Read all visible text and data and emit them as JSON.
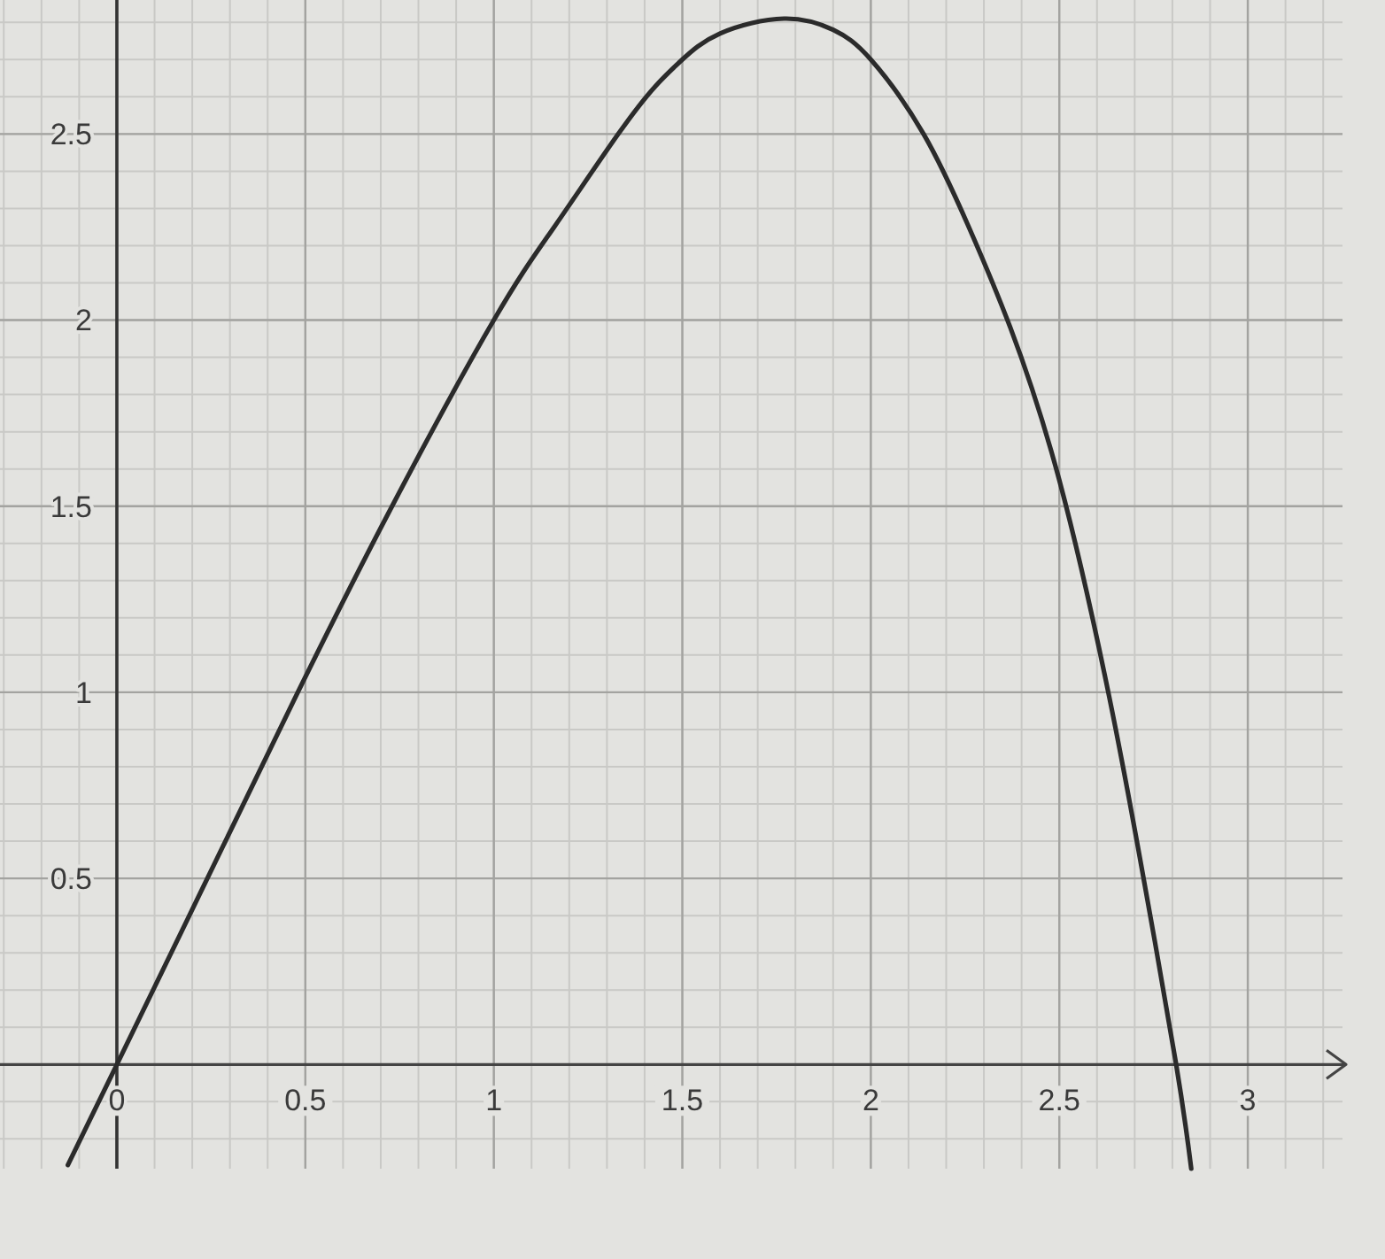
{
  "chart_data": {
    "type": "line",
    "x": [
      -0.13,
      0,
      0.24,
      0.48,
      0.73,
      1.0,
      1.16,
      1.33,
      1.43,
      1.5,
      1.6,
      1.77,
      1.9,
      2.0,
      2.14,
      2.26,
      2.37,
      2.5,
      2.63,
      2.72,
      2.81,
      2.85
    ],
    "series": [
      {
        "color": "#2b2b2b",
        "values": [
          -0.27,
          0,
          0.5,
          1.0,
          1.5,
          2.0,
          2.25,
          2.5,
          2.63,
          2.7,
          2.77,
          2.81,
          2.78,
          2.7,
          2.5,
          2.25,
          1.98,
          1.57,
          1.0,
          0.52,
          0,
          -0.28
        ]
      }
    ],
    "xlim": [
      -0.31,
      3.27
    ],
    "ylim": [
      -0.28,
      2.86
    ],
    "xticks": [
      0,
      0.5,
      1,
      1.5,
      2,
      2.5,
      3
    ],
    "yticks": [
      0.5,
      1,
      1.5,
      2,
      2.5
    ],
    "grid": true,
    "line_style": "solid"
  }
}
